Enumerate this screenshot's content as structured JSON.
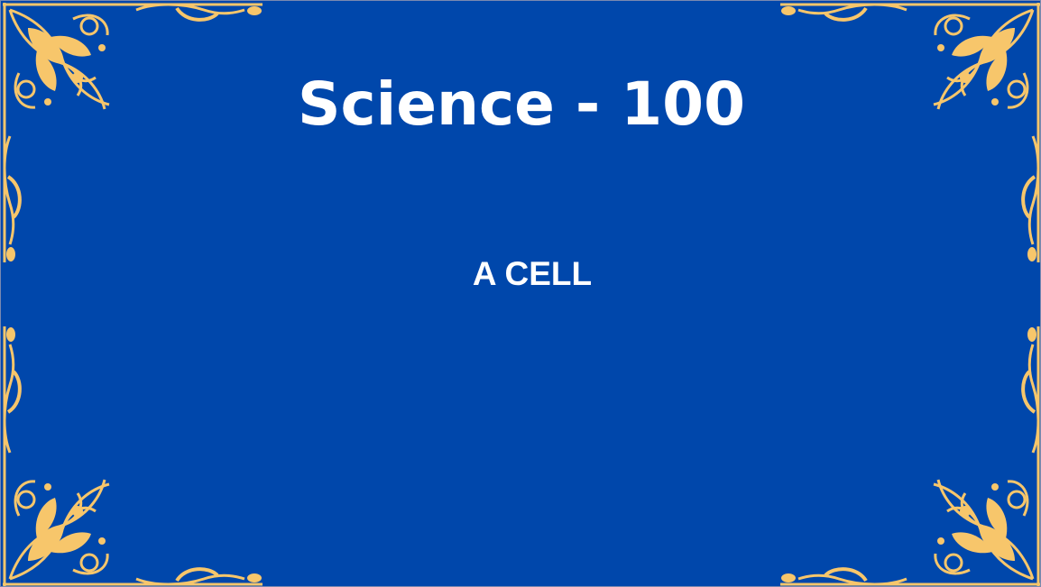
{
  "slide": {
    "title": "Science - 100",
    "subtitle": "A CELL"
  },
  "colors": {
    "background": "#0047ab",
    "ornament": "#f7c66b",
    "text": "#ffffff"
  },
  "decoration": {
    "frame_icon": "ornate-gold-frame-icon"
  }
}
